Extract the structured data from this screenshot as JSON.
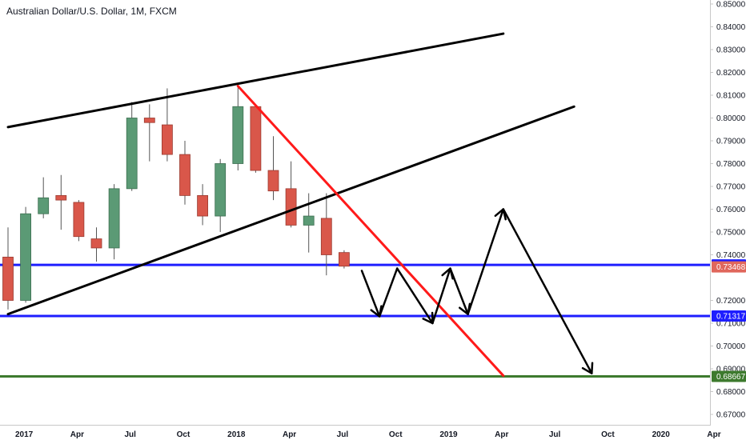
{
  "header": {
    "title": "Australian Dollar/U.S. Dollar, 1M, FXCM"
  },
  "colors": {
    "up": "#5b9a75",
    "down": "#d9574a",
    "blue_level": "#1e1eff",
    "green_level": "#3d7a2e",
    "trend_black": "#000000",
    "trend_red": "#ff1a1a",
    "current_price": "#e0675c"
  },
  "chart_data": {
    "type": "candlestick",
    "title": "Australian Dollar/U.S. Dollar, 1M, FXCM",
    "xlabel": "",
    "ylabel": "",
    "ylim": [
      0.665,
      0.85
    ],
    "xlim": [
      "2016-12",
      "2020-04"
    ],
    "grid": false,
    "y_ticks": [
      "0.85000",
      "0.84000",
      "0.83000",
      "0.82000",
      "0.81000",
      "0.80000",
      "0.79000",
      "0.78000",
      "0.77000",
      "0.76000",
      "0.75000",
      "0.74000",
      "0.72000",
      "0.71000",
      "0.70000",
      "0.69000",
      "0.68000",
      "0.67000"
    ],
    "x_ticks": [
      {
        "label": "2017",
        "date": "2017-01"
      },
      {
        "label": "Apr",
        "date": "2017-04"
      },
      {
        "label": "Jul",
        "date": "2017-07"
      },
      {
        "label": "Oct",
        "date": "2017-10"
      },
      {
        "label": "2018",
        "date": "2018-01"
      },
      {
        "label": "Apr",
        "date": "2018-04"
      },
      {
        "label": "Jul",
        "date": "2018-07"
      },
      {
        "label": "Oct",
        "date": "2018-10"
      },
      {
        "label": "2019",
        "date": "2019-01"
      },
      {
        "label": "Apr",
        "date": "2019-04"
      },
      {
        "label": "Jul",
        "date": "2019-07"
      },
      {
        "label": "Oct",
        "date": "2019-10"
      },
      {
        "label": "2020",
        "date": "2020-01"
      },
      {
        "label": "Apr",
        "date": "2020-04"
      }
    ],
    "candles": [
      {
        "date": "2016-12",
        "o": 0.739,
        "h": 0.752,
        "l": 0.716,
        "c": 0.72
      },
      {
        "date": "2017-01",
        "o": 0.72,
        "h": 0.761,
        "l": 0.719,
        "c": 0.758
      },
      {
        "date": "2017-02",
        "o": 0.758,
        "h": 0.774,
        "l": 0.756,
        "c": 0.765
      },
      {
        "date": "2017-03",
        "o": 0.766,
        "h": 0.775,
        "l": 0.751,
        "c": 0.764
      },
      {
        "date": "2017-04",
        "o": 0.763,
        "h": 0.764,
        "l": 0.746,
        "c": 0.748
      },
      {
        "date": "2017-05",
        "o": 0.747,
        "h": 0.752,
        "l": 0.737,
        "c": 0.743
      },
      {
        "date": "2017-06",
        "o": 0.743,
        "h": 0.771,
        "l": 0.738,
        "c": 0.769
      },
      {
        "date": "2017-07",
        "o": 0.769,
        "h": 0.807,
        "l": 0.768,
        "c": 0.8
      },
      {
        "date": "2017-08",
        "o": 0.8,
        "h": 0.806,
        "l": 0.781,
        "c": 0.798
      },
      {
        "date": "2017-09",
        "o": 0.797,
        "h": 0.813,
        "l": 0.781,
        "c": 0.784
      },
      {
        "date": "2017-10",
        "o": 0.784,
        "h": 0.79,
        "l": 0.762,
        "c": 0.766
      },
      {
        "date": "2017-11",
        "o": 0.766,
        "h": 0.771,
        "l": 0.753,
        "c": 0.757
      },
      {
        "date": "2017-12",
        "o": 0.757,
        "h": 0.782,
        "l": 0.75,
        "c": 0.78
      },
      {
        "date": "2018-01",
        "o": 0.78,
        "h": 0.814,
        "l": 0.777,
        "c": 0.805
      },
      {
        "date": "2018-02",
        "o": 0.805,
        "h": 0.806,
        "l": 0.776,
        "c": 0.777
      },
      {
        "date": "2018-03",
        "o": 0.777,
        "h": 0.792,
        "l": 0.764,
        "c": 0.768
      },
      {
        "date": "2018-04",
        "o": 0.769,
        "h": 0.781,
        "l": 0.752,
        "c": 0.753
      },
      {
        "date": "2018-05",
        "o": 0.753,
        "h": 0.767,
        "l": 0.741,
        "c": 0.757
      },
      {
        "date": "2018-06",
        "o": 0.756,
        "h": 0.767,
        "l": 0.731,
        "c": 0.74
      },
      {
        "date": "2018-07",
        "o": 0.741,
        "h": 0.742,
        "l": 0.734,
        "c": 0.735
      }
    ],
    "trendlines": [
      {
        "name": "upper-channel",
        "color": "black",
        "from": {
          "date": "2016-12",
          "price": 0.796
        },
        "to": {
          "date": "2019-04",
          "price": 0.837
        }
      },
      {
        "name": "lower-channel",
        "color": "black",
        "from": {
          "date": "2016-12",
          "price": 0.714
        },
        "to": {
          "date": "2019-08",
          "price": 0.805
        }
      },
      {
        "name": "down-trend",
        "color": "red",
        "from": {
          "date": "2018-01",
          "price": 0.814
        },
        "to": {
          "date": "2019-04",
          "price": 0.687
        }
      }
    ],
    "horizontal_levels": [
      {
        "name": "resistance",
        "color": "blue",
        "price": 0.73559,
        "label": "0.73559"
      },
      {
        "name": "support",
        "color": "blue",
        "price": 0.71317,
        "label": "0.71317"
      },
      {
        "name": "target",
        "color": "green",
        "price": 0.68667,
        "label": "0.68667"
      }
    ],
    "current_price": {
      "price": 0.73468,
      "label": "0.73468"
    },
    "projection_path": [
      {
        "date": "2018-08",
        "price": 0.733
      },
      {
        "date": "2018-09",
        "price": 0.713
      },
      {
        "date": "2018-10",
        "price": 0.734
      },
      {
        "date": "2018-12",
        "price": 0.71
      },
      {
        "date": "2019-01",
        "price": 0.734
      },
      {
        "date": "2019-02",
        "price": 0.714
      },
      {
        "date": "2019-04",
        "price": 0.76
      },
      {
        "date": "2019-09",
        "price": 0.688
      }
    ],
    "projection_arrowheads": [
      {
        "date": "2018-09",
        "price": 0.713
      },
      {
        "date": "2018-12",
        "price": 0.71
      },
      {
        "date": "2019-01",
        "price": 0.734
      },
      {
        "date": "2019-02",
        "price": 0.714
      },
      {
        "date": "2019-04",
        "price": 0.76
      },
      {
        "date": "2019-09",
        "price": 0.688
      }
    ]
  }
}
